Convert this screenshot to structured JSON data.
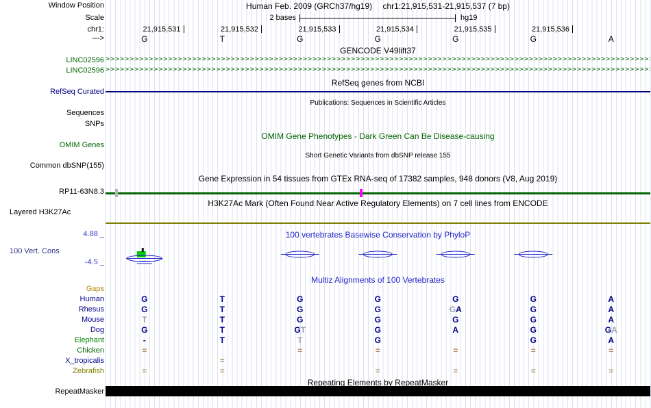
{
  "colors": {
    "track_green": "#006400",
    "refseq_navy": "#000080",
    "header_blue": "#2222cc",
    "cons_value_blue": "#3333cc",
    "cons_label_blue": "#333388",
    "olive": "#808000",
    "magenta_tick": "#ff00ff",
    "gray_tick": "#b5b5b5",
    "green_box": "#00cc00",
    "base_navy": "#00008b",
    "base_dim": "#98a0ae",
    "unalignable_tan": "#b3926a",
    "gaps_label": "#b8860b",
    "repeat_black": "#000000"
  },
  "header": {
    "window_position_label": "Window Position",
    "assembly_title": "Human Feb. 2009 (GRCh37/hg19)",
    "position_range": "chr1:21,915,531-21,915,537 (7 bp)",
    "scale_label": "Scale",
    "scale_value": "2 bases",
    "assembly_short": "hg19"
  },
  "ruler": {
    "chrom_label": "chr1:",
    "strand_label": "--->",
    "positions": [
      "21,915,531",
      "21,915,532",
      "21,915,533",
      "21,915,534",
      "21,915,535",
      "21,915,536"
    ],
    "ref_bases": [
      "G",
      "T",
      "G",
      "G",
      "G",
      "G",
      "A"
    ]
  },
  "tracks": {
    "gencode": {
      "header": "GENCODE V49lift37",
      "items": [
        {
          "label": "LINC02596"
        },
        {
          "label": "LINC02596"
        }
      ]
    },
    "refseq": {
      "header": "RefSeq genes from NCBI",
      "label": "RefSeq Curated"
    },
    "publications": {
      "header": "Publications: Sequences in Scientific Articles",
      "labels": [
        "Sequences",
        "SNPs"
      ]
    },
    "omim": {
      "header": "OMIM Gene Phenotypes - Dark Green Can Be Disease-causing",
      "label": "OMIM Genes"
    },
    "dbsnp": {
      "header": "Short Genetic Variants from dbSNP release 155",
      "label": "Common dbSNP(155)"
    },
    "gtex": {
      "header": "Gene Expression in 54 tissues from GTEx RNA-seq of 17382 samples, 948 donors (V8, Aug 2019)",
      "label": "RP11-63N8.3"
    },
    "h3k27ac": {
      "header": "H3K27Ac Mark (Often Found Near Active Regulatory Elements) on 7 cell lines from ENCODE",
      "label": "Layered H3K27Ac"
    },
    "conservation": {
      "header": "100 vertebrates Basewise Conservation by PhyloP",
      "label": "100 Vert. Cons",
      "max_value": "4.88 _",
      "min_value": "-4.5 _"
    },
    "multiz": {
      "header": "Multiz Alignments of 100 Vertebrates",
      "rows": [
        {
          "label": "Gaps",
          "color": "#b8860b",
          "cells": [
            [],
            [],
            [],
            [],
            [],
            [],
            []
          ]
        },
        {
          "label": "Human",
          "color": "#00008b",
          "cells": [
            [
              "G:b"
            ],
            [
              "T:b"
            ],
            [
              "G:b"
            ],
            [
              "G:b"
            ],
            [
              "G:b"
            ],
            [
              "G:b"
            ],
            [
              "A:b"
            ]
          ]
        },
        {
          "label": "Rhesus",
          "color": "#00008b",
          "cells": [
            [
              "G:b"
            ],
            [
              "T:b"
            ],
            [
              "G:b"
            ],
            [
              "G:b"
            ],
            [
              "G:d",
              "A:b"
            ],
            [
              "G:b"
            ],
            [
              "A:b"
            ]
          ]
        },
        {
          "label": "Mouse",
          "color": "#00008b",
          "cells": [
            [
              "T:d"
            ],
            [
              "T:b"
            ],
            [
              "G:b"
            ],
            [
              "G:b"
            ],
            [
              "G:b"
            ],
            [
              "G:b"
            ],
            [
              "A:b"
            ]
          ]
        },
        {
          "label": "Dog",
          "color": "#00008b",
          "cells": [
            [
              "G:b"
            ],
            [
              "T:b"
            ],
            [
              "G:b",
              "T:d"
            ],
            [
              "G:b"
            ],
            [
              "A:b"
            ],
            [
              "G:b"
            ],
            [
              "G:b",
              "A:d"
            ]
          ]
        },
        {
          "label": "Elephant",
          "color": "#008000",
          "cells": [
            [
              "-:b"
            ],
            [
              "T:b"
            ],
            [
              "T:d"
            ],
            [
              "G:b"
            ],
            [],
            [
              "G:b"
            ],
            [
              "A:b"
            ]
          ]
        },
        {
          "label": "Chicken",
          "color": "#006400",
          "cells": [
            [
              "=:e"
            ],
            [],
            [
              "=:e"
            ],
            [
              "=:e"
            ],
            [
              "=:e"
            ],
            [
              "=:e"
            ],
            [
              "=:e"
            ]
          ]
        },
        {
          "label": "X_tropicalis",
          "color": "#00008b",
          "cells": [
            [],
            [
              "=:e"
            ],
            [],
            [],
            [],
            [],
            []
          ]
        },
        {
          "label": "Zebrafish",
          "color": "#808000",
          "cells": [
            [
              "=:e"
            ],
            [
              "=:e"
            ],
            [],
            [
              "=:e"
            ],
            [
              "=:e"
            ],
            [
              "=:e"
            ],
            [
              "=:e"
            ]
          ]
        }
      ]
    },
    "repeatmasker": {
      "header": "Repeating Elements by RepeatMasker",
      "label": "RepeatMasker"
    }
  }
}
